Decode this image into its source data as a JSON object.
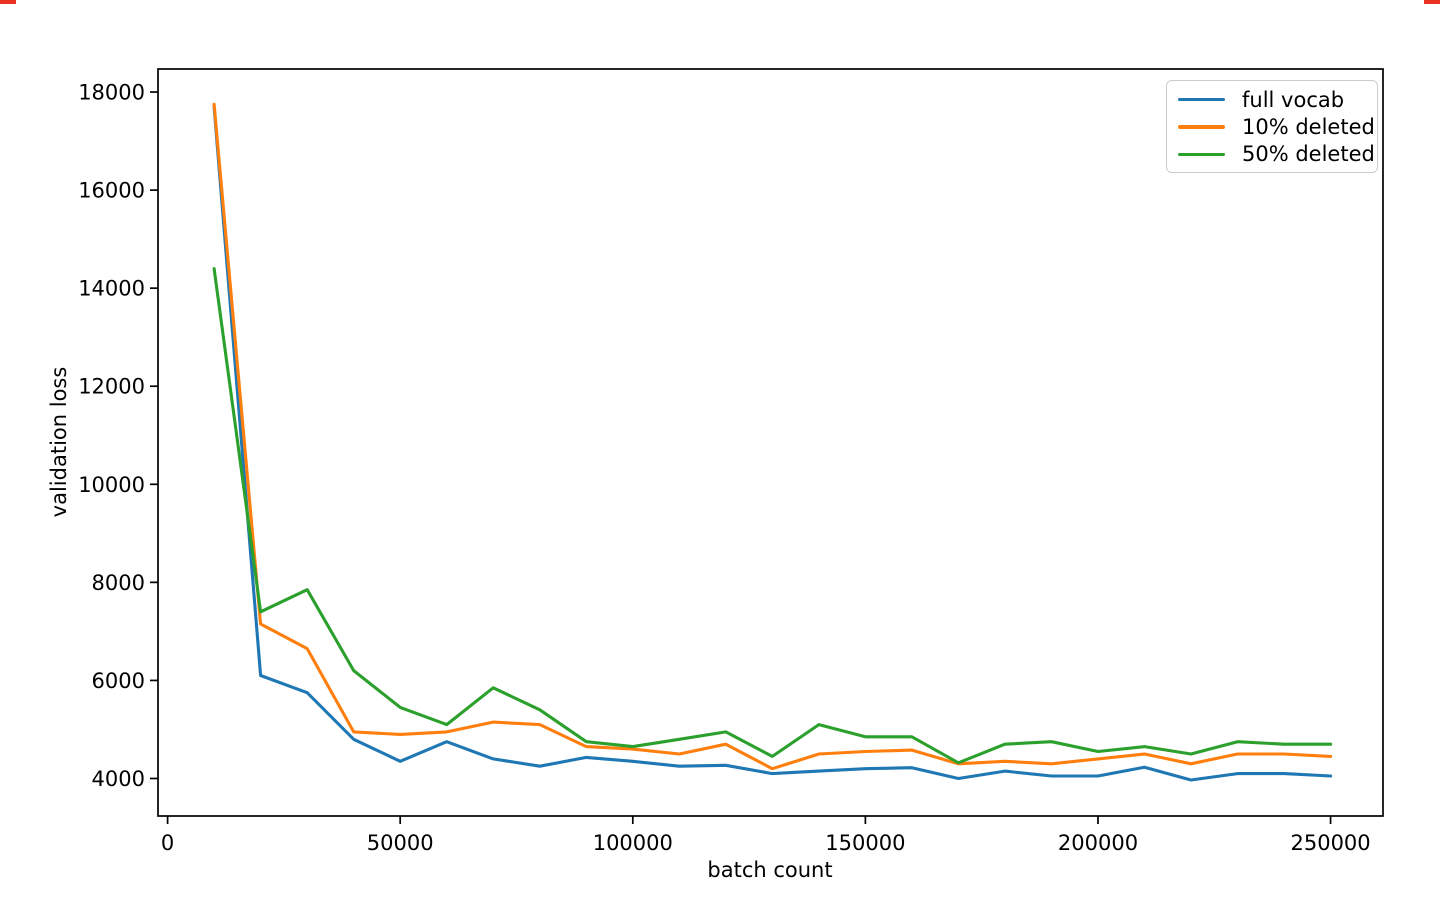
{
  "figure": {
    "background": "#ffffff"
  },
  "chart_data": {
    "type": "line",
    "title": "",
    "xlabel": "batch count",
    "ylabel": "validation loss",
    "grid": false,
    "x": [
      10000,
      20000,
      30000,
      40000,
      50000,
      60000,
      70000,
      80000,
      90000,
      100000,
      110000,
      120000,
      130000,
      140000,
      150000,
      160000,
      170000,
      180000,
      190000,
      200000,
      210000,
      220000,
      230000,
      240000,
      250000
    ],
    "series": [
      {
        "name": "full vocab",
        "color": "#1f77b4",
        "values": [
          17700,
          6100,
          5750,
          4800,
          4350,
          4750,
          4400,
          4250,
          4430,
          4350,
          4250,
          4270,
          4100,
          4150,
          4200,
          4220,
          4000,
          4150,
          4050,
          4050,
          4230,
          3970,
          4100,
          4100,
          4050
        ]
      },
      {
        "name": "10% deleted",
        "color": "#ff7f0e",
        "values": [
          17750,
          7150,
          6650,
          4950,
          4900,
          4950,
          5150,
          5100,
          4650,
          4600,
          4500,
          4700,
          4200,
          4500,
          4550,
          4580,
          4300,
          4350,
          4300,
          4400,
          4500,
          4300,
          4500,
          4500,
          4450
        ]
      },
      {
        "name": "50% deleted",
        "color": "#2ca02c",
        "values": [
          14400,
          7400,
          7850,
          6200,
          5450,
          5100,
          5850,
          5400,
          4750,
          4650,
          4800,
          4950,
          4450,
          5100,
          4850,
          4850,
          4320,
          4700,
          4750,
          4550,
          4650,
          4500,
          4750,
          4700,
          4700
        ]
      }
    ],
    "xticks": [
      0,
      50000,
      100000,
      150000,
      200000,
      250000
    ],
    "xtick_labels": [
      "0",
      "50000",
      "100000",
      "150000",
      "200000",
      "250000"
    ],
    "yticks": [
      4000,
      6000,
      8000,
      10000,
      12000,
      14000,
      16000,
      18000
    ],
    "ytick_labels": [
      "4000",
      "6000",
      "8000",
      "10000",
      "12000",
      "14000",
      "16000",
      "18000"
    ],
    "xlim": [
      -2064,
      261270
    ],
    "ylim": [
      3235,
      18470
    ],
    "legend": {
      "position": "upper right",
      "entries": [
        "full vocab",
        "10% deleted",
        "50% deleted"
      ]
    }
  }
}
